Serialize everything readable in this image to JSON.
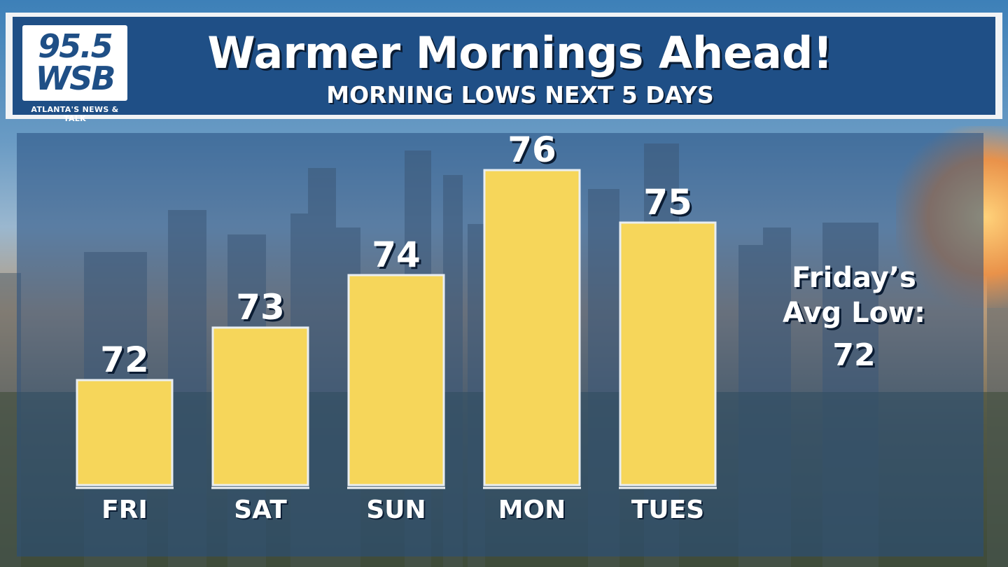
{
  "header": {
    "logo": {
      "line1": "95.5",
      "line2": "WSB",
      "tagline": "ATLANTA'S NEWS & TALK"
    },
    "title": "Warmer Mornings Ahead!",
    "subtitle": "MORNING LOWS NEXT 5 DAYS"
  },
  "avg_note": {
    "line1": "Friday’s",
    "line2": "Avg Low:",
    "value": "72"
  },
  "colors": {
    "bar_fill": "#f6d65a",
    "bar_outline": "#e9eef2",
    "header_blue": "#1f4f86"
  },
  "chart_data": {
    "type": "bar",
    "title": "MORNING LOWS NEXT 5 DAYS",
    "categories": [
      "FRI",
      "SAT",
      "SUN",
      "MON",
      "TUES"
    ],
    "values": [
      72,
      73,
      74,
      76,
      75
    ],
    "data_labels": [
      "72",
      "73",
      "74",
      "76",
      "75"
    ],
    "xlabel": "",
    "ylabel": "",
    "grid": false,
    "legend": "none"
  }
}
